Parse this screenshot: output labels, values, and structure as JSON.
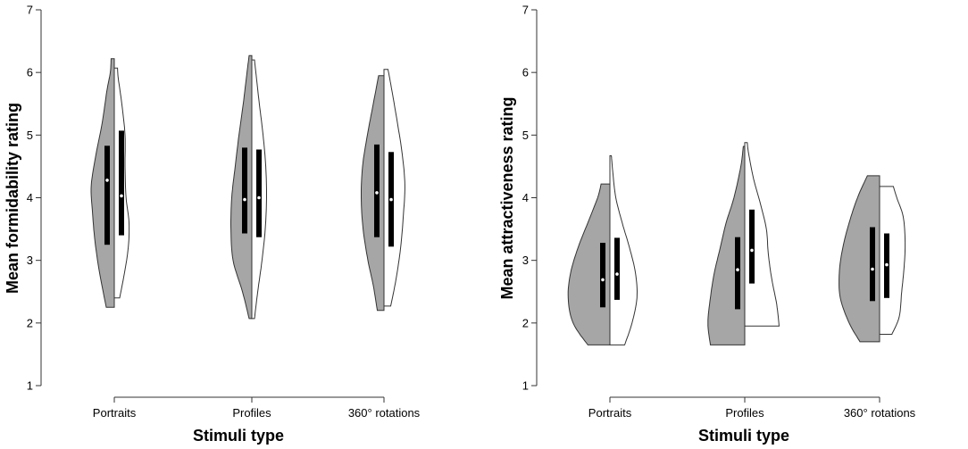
{
  "chart_data": [
    {
      "type": "split-violin",
      "xlabel": "Stimuli type",
      "ylabel": "Mean formidability rating",
      "ylim": [
        1,
        7
      ],
      "yticks": [
        "1",
        "2",
        "3",
        "4",
        "5",
        "6",
        "7"
      ],
      "categories": [
        "Portraits",
        "Profiles",
        "360° rotations"
      ],
      "colors": {
        "left": "#a6a6a6",
        "right": "#ffffff",
        "box": "#000000",
        "median": "#ffffff"
      },
      "groups": [
        {
          "left": {
            "min": 2.25,
            "max": 6.22,
            "q1": 3.25,
            "q3": 4.83,
            "median": 4.28,
            "density": [
              [
                2.25,
                0.3
              ],
              [
                2.8,
                0.55
              ],
              [
                3.3,
                0.72
              ],
              [
                3.8,
                0.82
              ],
              [
                4.2,
                0.86
              ],
              [
                4.7,
                0.68
              ],
              [
                5.2,
                0.45
              ],
              [
                5.7,
                0.28
              ],
              [
                6.0,
                0.15
              ],
              [
                6.22,
                0.12
              ]
            ]
          },
          "right": {
            "min": 2.4,
            "max": 6.07,
            "q1": 3.4,
            "q3": 5.07,
            "median": 4.03,
            "density": [
              [
                2.4,
                0.2
              ],
              [
                2.8,
                0.38
              ],
              [
                3.2,
                0.52
              ],
              [
                3.6,
                0.55
              ],
              [
                4.0,
                0.44
              ],
              [
                4.5,
                0.4
              ],
              [
                5.0,
                0.4
              ],
              [
                5.5,
                0.28
              ],
              [
                5.9,
                0.15
              ],
              [
                6.07,
                0.12
              ]
            ]
          }
        },
        {
          "left": {
            "min": 2.07,
            "max": 6.27,
            "q1": 3.43,
            "q3": 4.8,
            "median": 3.97,
            "density": [
              [
                2.07,
                0.1
              ],
              [
                2.5,
                0.35
              ],
              [
                3.0,
                0.7
              ],
              [
                3.5,
                0.78
              ],
              [
                4.0,
                0.75
              ],
              [
                4.5,
                0.62
              ],
              [
                5.0,
                0.48
              ],
              [
                5.5,
                0.32
              ],
              [
                6.0,
                0.18
              ],
              [
                6.27,
                0.1
              ]
            ]
          },
          "right": {
            "min": 2.07,
            "max": 6.2,
            "q1": 3.37,
            "q3": 4.77,
            "median": 4.0,
            "density": [
              [
                2.07,
                0.1
              ],
              [
                2.5,
                0.22
              ],
              [
                3.0,
                0.38
              ],
              [
                3.5,
                0.5
              ],
              [
                4.0,
                0.55
              ],
              [
                4.5,
                0.52
              ],
              [
                5.0,
                0.42
              ],
              [
                5.5,
                0.28
              ],
              [
                6.0,
                0.15
              ],
              [
                6.2,
                0.1
              ]
            ]
          }
        },
        {
          "left": {
            "min": 2.2,
            "max": 5.95,
            "q1": 3.37,
            "q3": 4.85,
            "median": 4.08,
            "density": [
              [
                2.2,
                0.25
              ],
              [
                2.6,
                0.4
              ],
              [
                3.0,
                0.6
              ],
              [
                3.5,
                0.78
              ],
              [
                4.0,
                0.85
              ],
              [
                4.5,
                0.8
              ],
              [
                5.0,
                0.62
              ],
              [
                5.5,
                0.4
              ],
              [
                5.95,
                0.2
              ]
            ]
          },
          "right": {
            "min": 2.27,
            "max": 6.05,
            "q1": 3.22,
            "q3": 4.73,
            "median": 3.97,
            "density": [
              [
                2.27,
                0.25
              ],
              [
                2.7,
                0.45
              ],
              [
                3.2,
                0.62
              ],
              [
                3.7,
                0.72
              ],
              [
                4.2,
                0.78
              ],
              [
                4.7,
                0.68
              ],
              [
                5.2,
                0.5
              ],
              [
                5.7,
                0.3
              ],
              [
                6.05,
                0.15
              ]
            ]
          }
        }
      ]
    },
    {
      "type": "split-violin",
      "xlabel": "Stimuli type",
      "ylabel": "Mean attractiveness rating",
      "ylim": [
        1,
        7
      ],
      "yticks": [
        "1",
        "2",
        "3",
        "4",
        "5",
        "6",
        "7"
      ],
      "categories": [
        "Portraits",
        "Profiles",
        "360° rotations"
      ],
      "colors": {
        "left": "#a6a6a6",
        "right": "#ffffff",
        "box": "#000000",
        "median": "#ffffff"
      },
      "groups": [
        {
          "left": {
            "min": 1.65,
            "max": 4.22,
            "q1": 2.25,
            "q3": 3.28,
            "median": 2.69,
            "density": [
              [
                1.65,
                0.45
              ],
              [
                2.0,
                0.75
              ],
              [
                2.4,
                0.85
              ],
              [
                2.8,
                0.8
              ],
              [
                3.2,
                0.65
              ],
              [
                3.6,
                0.45
              ],
              [
                4.0,
                0.25
              ],
              [
                4.22,
                0.18
              ]
            ]
          },
          "right": {
            "min": 1.65,
            "max": 4.67,
            "q1": 2.37,
            "q3": 3.36,
            "median": 2.78,
            "density": [
              [
                1.65,
                0.3
              ],
              [
                2.0,
                0.45
              ],
              [
                2.4,
                0.55
              ],
              [
                2.8,
                0.52
              ],
              [
                3.2,
                0.4
              ],
              [
                3.6,
                0.25
              ],
              [
                4.0,
                0.12
              ],
              [
                4.4,
                0.06
              ],
              [
                4.67,
                0.03
              ]
            ]
          }
        },
        {
          "left": {
            "min": 1.65,
            "max": 4.82,
            "q1": 2.22,
            "q3": 3.37,
            "median": 2.85,
            "density": [
              [
                1.65,
                0.7
              ],
              [
                2.0,
                0.75
              ],
              [
                2.4,
                0.7
              ],
              [
                2.8,
                0.62
              ],
              [
                3.2,
                0.5
              ],
              [
                3.6,
                0.38
              ],
              [
                4.0,
                0.22
              ],
              [
                4.5,
                0.08
              ],
              [
                4.82,
                0.03
              ]
            ]
          },
          "right": {
            "min": 1.95,
            "max": 4.88,
            "q1": 2.63,
            "q3": 3.81,
            "median": 3.16,
            "density": [
              [
                1.95,
                0.7
              ],
              [
                2.3,
                0.65
              ],
              [
                2.7,
                0.55
              ],
              [
                3.1,
                0.48
              ],
              [
                3.5,
                0.44
              ],
              [
                3.9,
                0.32
              ],
              [
                4.3,
                0.18
              ],
              [
                4.7,
                0.08
              ],
              [
                4.88,
                0.05
              ]
            ]
          }
        },
        {
          "left": {
            "min": 1.7,
            "max": 4.35,
            "q1": 2.35,
            "q3": 3.53,
            "median": 2.86,
            "density": [
              [
                1.7,
                0.4
              ],
              [
                2.0,
                0.62
              ],
              [
                2.4,
                0.8
              ],
              [
                2.8,
                0.82
              ],
              [
                3.2,
                0.75
              ],
              [
                3.6,
                0.62
              ],
              [
                4.0,
                0.45
              ],
              [
                4.35,
                0.25
              ]
            ]
          },
          "right": {
            "min": 1.82,
            "max": 4.18,
            "q1": 2.4,
            "q3": 3.43,
            "median": 2.93,
            "density": [
              [
                1.82,
                0.25
              ],
              [
                2.1,
                0.4
              ],
              [
                2.5,
                0.45
              ],
              [
                2.9,
                0.5
              ],
              [
                3.3,
                0.52
              ],
              [
                3.7,
                0.48
              ],
              [
                4.0,
                0.35
              ],
              [
                4.18,
                0.28
              ]
            ]
          }
        }
      ]
    }
  ]
}
